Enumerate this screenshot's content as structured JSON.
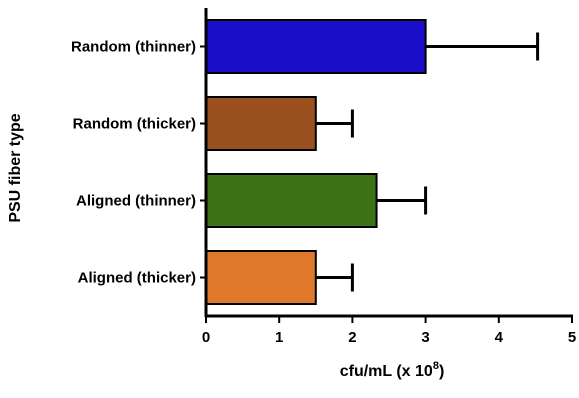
{
  "chart_data": {
    "type": "bar",
    "orientation": "horizontal",
    "categories": [
      "Random (thinner)",
      "Random (thicker)",
      "Aligned (thinner)",
      "Aligned (thicker)"
    ],
    "values": [
      3.0,
      1.5,
      2.33,
      1.5
    ],
    "error_plus": [
      1.53,
      0.5,
      0.67,
      0.5
    ],
    "bar_colors": [
      "#1a0ec8",
      "#9a4f1e",
      "#3c7316",
      "#e0782c"
    ],
    "xlim": [
      0,
      5
    ],
    "x_ticks": [
      "0",
      "1",
      "2",
      "3",
      "4",
      "5"
    ],
    "xlabel_main": "cfu/mL (x 10",
    "xlabel_exponent": "8",
    "xlabel_close": ")",
    "ylabel": "PSU fiber type",
    "grid": false,
    "legend": "none"
  }
}
